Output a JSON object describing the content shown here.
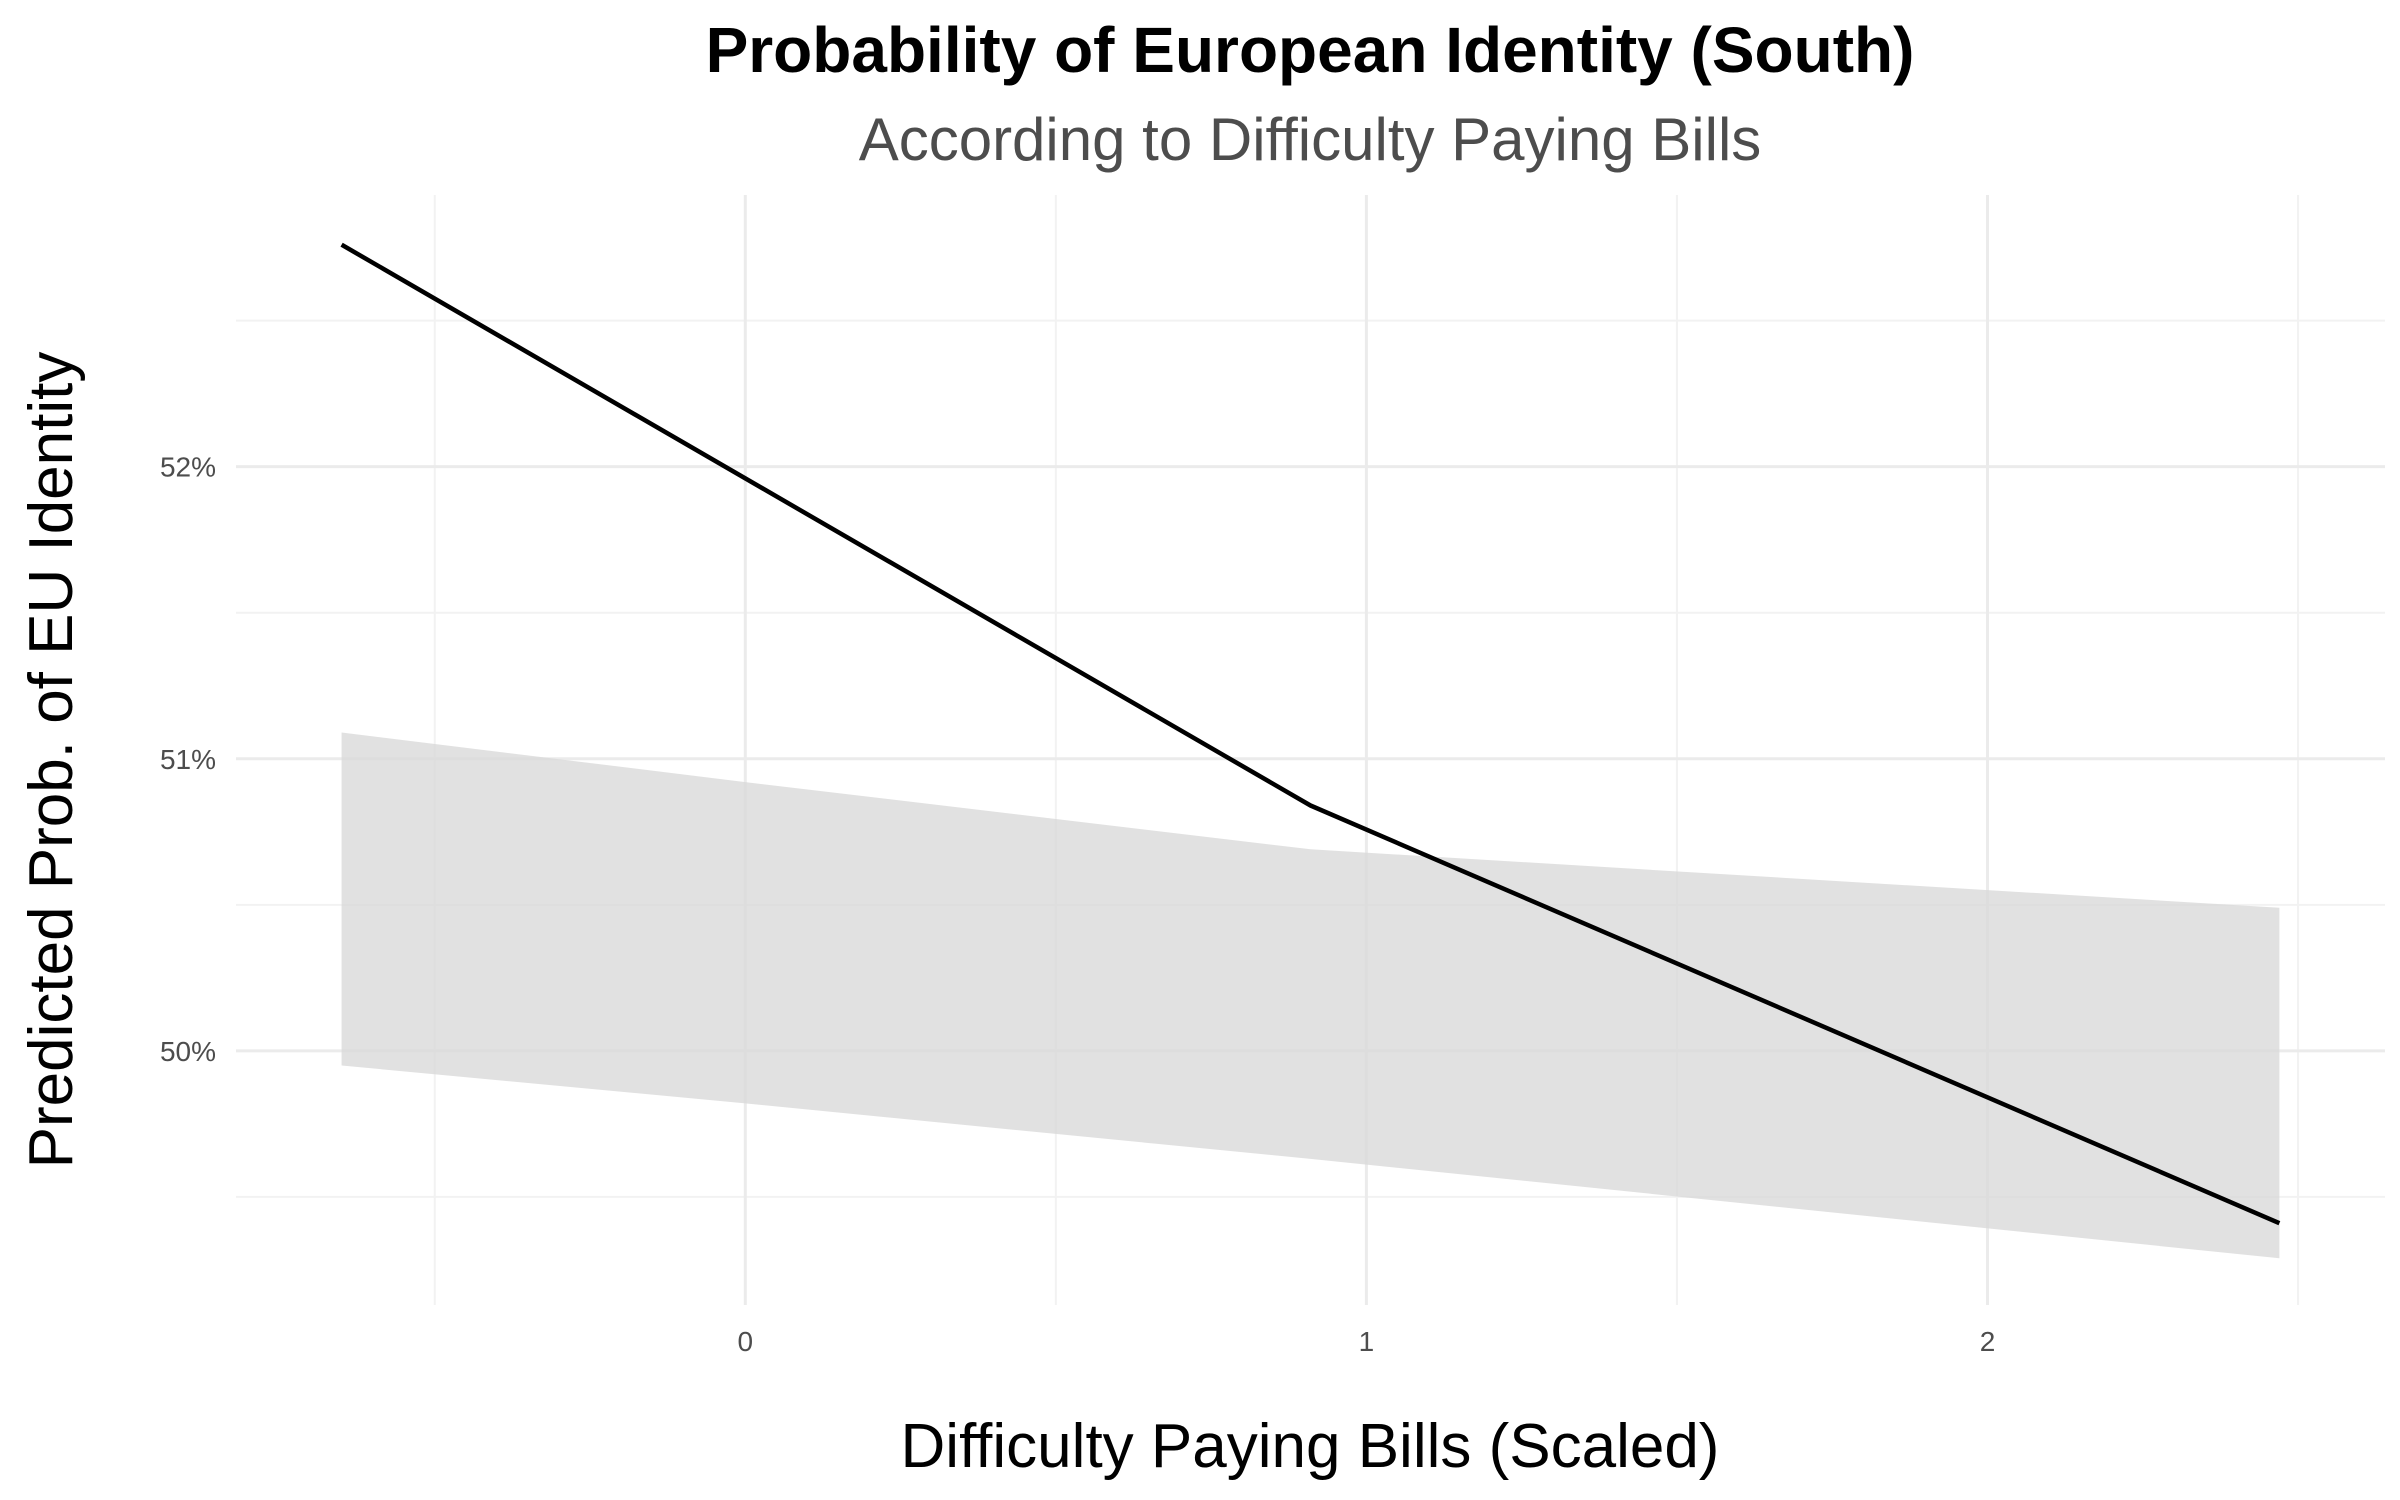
{
  "chart_data": {
    "type": "line",
    "title": "Probability of European Identity (South)",
    "subtitle": "According to Difficulty Paying Bills",
    "xlabel": "Difficulty Paying Bills (Scaled)",
    "ylabel": "Predicted Prob. of EU Identity",
    "xlim": [
      -0.82,
      2.64
    ],
    "ylim": [
      49.13,
      52.93
    ],
    "x_ticks": [
      0,
      1,
      2
    ],
    "x_tick_labels": [
      "0",
      "1",
      "2"
    ],
    "x_minor_ticks": [
      -0.5,
      0.5,
      1.5,
      2.5
    ],
    "y_ticks": [
      50,
      51,
      52
    ],
    "y_tick_labels": [
      "50%",
      "51%",
      "52%"
    ],
    "y_minor_ticks": [
      49.5,
      50.5,
      51.5,
      52.5
    ],
    "grid": true,
    "legend": "none",
    "colors": {
      "line": "#000000",
      "ribbon": "#d9d9d9"
    },
    "series": [
      {
        "x": [
          -0.65,
          0.91,
          2.47
        ],
        "y": [
          52.76,
          50.84,
          49.41
        ]
      }
    ],
    "ribbon": {
      "x": [
        -0.65,
        0.0,
        0.91,
        2.47
      ],
      "lower": [
        49.95,
        49.82,
        49.63,
        49.29
      ],
      "upper": [
        51.09,
        50.92,
        50.69,
        50.49
      ]
    }
  }
}
